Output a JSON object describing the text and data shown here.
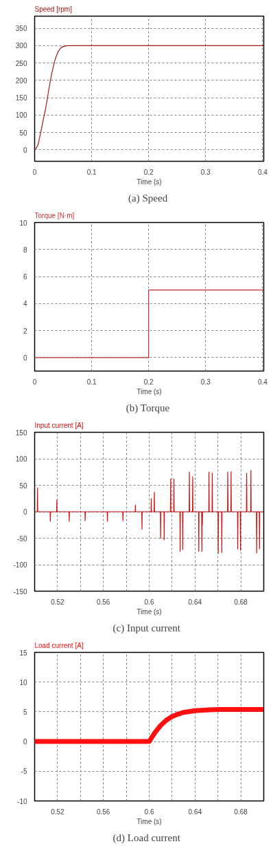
{
  "chart_data": [
    {
      "type": "line",
      "title": "Speed [rpm]",
      "xlabel": "Time (s)",
      "annotations": [
        "(a)  Speed"
      ],
      "x": [
        0,
        0.003,
        0.006,
        0.01,
        0.015,
        0.02,
        0.025,
        0.03,
        0.035,
        0.038,
        0.042,
        0.047,
        0.053,
        0.06,
        0.402
      ],
      "series": [
        {
          "color": "#a01818",
          "values": [
            0,
            5,
            15,
            45,
            85,
            125,
            175,
            220,
            255,
            270,
            285,
            295,
            299,
            300,
            300
          ]
        }
      ],
      "xlim": [
        0,
        0.402
      ],
      "ylim": [
        -33,
        385
      ],
      "xticks": [
        0,
        0.1,
        0.2,
        0.3,
        0.4
      ],
      "yticks": [
        0,
        50,
        100,
        150,
        200,
        250,
        300,
        350
      ],
      "grid": true
    },
    {
      "type": "step",
      "title": "Torque [N·m]",
      "xlabel": "Time (s)",
      "annotations": [
        "(b)  Torque"
      ],
      "x": [
        0,
        0.2,
        0.402
      ],
      "series": [
        {
          "color": "#c83030",
          "values": [
            0,
            5,
            5
          ]
        }
      ],
      "xlim": [
        0,
        0.402
      ],
      "ylim": [
        -1,
        10
      ],
      "xticks": [
        0,
        0.1,
        0.2,
        0.3,
        0.4
      ],
      "yticks": [
        0,
        2,
        4,
        6,
        8,
        10
      ],
      "grid": true
    },
    {
      "type": "line",
      "title": "Input current [A]",
      "xlabel": "Time (s)",
      "annotations": [
        "(c)  Input  current"
      ],
      "x": [
        0.5,
        0.5023,
        0.5025,
        0.5027,
        0.5135,
        0.5137,
        0.5139,
        0.5192,
        0.5194,
        0.5196,
        0.53,
        0.5302,
        0.5304,
        0.5439,
        0.5441,
        0.5443,
        0.5633,
        0.5635,
        0.5637,
        0.5769,
        0.5771,
        0.5773,
        0.5878,
        0.588,
        0.5882,
        0.5935,
        0.5937,
        0.5939,
        0.6016,
        0.6018,
        0.602,
        0.6043,
        0.6045,
        0.6047,
        0.6098,
        0.61,
        0.6102,
        0.6129,
        0.6131,
        0.6133,
        0.6185,
        0.6187,
        0.6189,
        0.6214,
        0.6216,
        0.6218,
        0.6268,
        0.627,
        0.6272,
        0.6291,
        0.6293,
        0.6295,
        0.6349,
        0.6351,
        0.6353,
        0.6378,
        0.638,
        0.6382,
        0.6431,
        0.6433,
        0.6435,
        0.6458,
        0.646,
        0.6462,
        0.6464,
        0.6466,
        0.652,
        0.6522,
        0.6524,
        0.6549,
        0.6551,
        0.6553,
        0.6601,
        0.6603,
        0.6605,
        0.6632,
        0.6634,
        0.6636,
        0.6684,
        0.6686,
        0.6688,
        0.6713,
        0.6715,
        0.6717,
        0.6771,
        0.6773,
        0.6775,
        0.6795,
        0.6797,
        0.6799,
        0.6849,
        0.6851,
        0.6853,
        0.6886,
        0.6888,
        0.689,
        0.6936,
        0.6938,
        0.694,
        0.6961,
        0.6963,
        0.6965,
        0.7
      ],
      "series": [
        {
          "color": "#d01010",
          "values": [
            0,
            0,
            45,
            0,
            0,
            -18,
            0,
            0,
            22,
            0,
            0,
            -18,
            0,
            0,
            -17,
            0,
            0,
            -18,
            0,
            0,
            -17,
            0,
            0,
            13,
            0,
            0,
            -33,
            0,
            0,
            25,
            0,
            0,
            37,
            0,
            0,
            -50,
            0,
            0,
            -53,
            0,
            0,
            62,
            0,
            0,
            62,
            0,
            0,
            -75,
            0,
            0,
            -71,
            0,
            0,
            75,
            0,
            0,
            66,
            0,
            0,
            -75,
            0,
            0,
            -75,
            0,
            -25,
            0,
            0,
            75,
            0,
            0,
            73,
            0,
            0,
            -78,
            0,
            0,
            -77,
            0,
            0,
            75,
            0,
            0,
            76,
            0,
            0,
            -70,
            0,
            0,
            -73,
            0,
            0,
            73,
            0,
            0,
            78,
            0,
            0,
            -78,
            0,
            0,
            -70,
            0,
            0
          ]
        }
      ],
      "xlim": [
        0.5,
        0.7
      ],
      "ylim": [
        -150,
        150
      ],
      "xticks": [
        0.52,
        {
          "value": 0.54,
          "label": null
        },
        0.56,
        {
          "value": 0.58,
          "label": null
        },
        0.6,
        {
          "value": 0.62,
          "label": null
        },
        0.64,
        {
          "value": 0.66,
          "label": null
        },
        0.68
      ],
      "yticks": [
        -150,
        -100,
        -50,
        0,
        50,
        100,
        150
      ],
      "grid": true
    },
    {
      "type": "line",
      "title": "Load current [A]",
      "xlabel": "Time (s)",
      "annotations": [
        "(d)  Load  current"
      ],
      "x": [
        0.5,
        0.6,
        0.605,
        0.61,
        0.615,
        0.62,
        0.625,
        0.63,
        0.64,
        0.65,
        0.66,
        0.7
      ],
      "series": [
        {
          "color": "#ff1010",
          "values": [
            0,
            0,
            1.5,
            2.7,
            3.6,
            4.2,
            4.6,
            4.9,
            5.2,
            5.3,
            5.4,
            5.4
          ]
        }
      ],
      "xlim": [
        0.5,
        0.7
      ],
      "ylim": [
        -10,
        15
      ],
      "xticks": [
        0.52,
        {
          "value": 0.54,
          "label": null
        },
        0.56,
        {
          "value": 0.58,
          "label": null
        },
        0.6,
        {
          "value": 0.62,
          "label": null
        },
        0.64,
        {
          "value": 0.66,
          "label": null
        },
        0.68
      ],
      "yticks": [
        -10,
        -5,
        0,
        5,
        10,
        15
      ],
      "grid": true
    }
  ]
}
